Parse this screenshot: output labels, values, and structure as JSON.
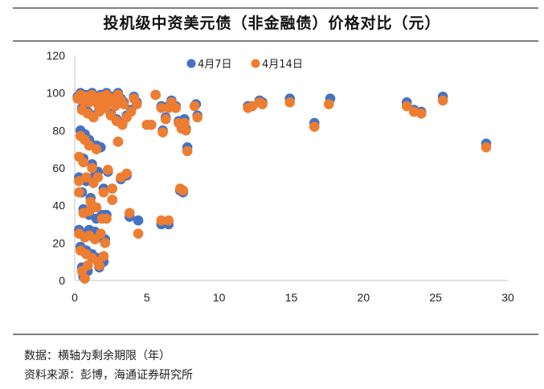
{
  "title": "投机级中资美元债（非金融债）价格对比（元）",
  "notes": {
    "data": "数据：横轴为剩余期限（年）",
    "source": "资料来源：彭博，海通证券研究所"
  },
  "chart_data": {
    "type": "scatter",
    "title": "投机级中资美元债（非金融债）价格对比（元）",
    "xlabel": "",
    "ylabel": "",
    "xlim": [
      0,
      30
    ],
    "ylim": [
      0,
      120
    ],
    "x_ticks": [
      "0",
      "5",
      "10",
      "15",
      "20",
      "25",
      "30"
    ],
    "y_ticks": [
      "0",
      "20",
      "40",
      "60",
      "80",
      "100",
      "120"
    ],
    "grid": false,
    "legend": "top",
    "series": [
      {
        "name": "4月7日",
        "color": "#4472C4",
        "points": [
          [
            0.2,
            98
          ],
          [
            0.4,
            100
          ],
          [
            0.6,
            97
          ],
          [
            0.8,
            99
          ],
          [
            1.0,
            96
          ],
          [
            1.2,
            100
          ],
          [
            1.4,
            98
          ],
          [
            1.6,
            95
          ],
          [
            1.8,
            99
          ],
          [
            2.0,
            97
          ],
          [
            2.2,
            100
          ],
          [
            2.4,
            96
          ],
          [
            2.6,
            98
          ],
          [
            2.8,
            94
          ],
          [
            3.0,
            100
          ],
          [
            3.2,
            97
          ],
          [
            3.4,
            95
          ],
          [
            0.5,
            92
          ],
          [
            0.9,
            90
          ],
          [
            1.3,
            88
          ],
          [
            1.7,
            91
          ],
          [
            2.1,
            93
          ],
          [
            2.5,
            89
          ],
          [
            2.9,
            86
          ],
          [
            3.3,
            84
          ],
          [
            3.6,
            88
          ],
          [
            3.9,
            91
          ],
          [
            4.1,
            98
          ],
          [
            4.3,
            95
          ],
          [
            0.4,
            80
          ],
          [
            0.7,
            78
          ],
          [
            1.0,
            75
          ],
          [
            1.5,
            72
          ],
          [
            1.8,
            71
          ],
          [
            0.6,
            65
          ],
          [
            1.2,
            62
          ],
          [
            1.6,
            58
          ],
          [
            0.3,
            55
          ],
          [
            0.8,
            53
          ],
          [
            1.3,
            55
          ],
          [
            2.0,
            49
          ],
          [
            0.5,
            47
          ],
          [
            1.1,
            44
          ],
          [
            0.6,
            38
          ],
          [
            1.0,
            35
          ],
          [
            1.5,
            33
          ],
          [
            1.9,
            35
          ],
          [
            2.2,
            35
          ],
          [
            0.3,
            27
          ],
          [
            0.7,
            25
          ],
          [
            1.0,
            27
          ],
          [
            1.4,
            26
          ],
          [
            1.8,
            23
          ],
          [
            2.1,
            22
          ],
          [
            0.4,
            18
          ],
          [
            0.8,
            16
          ],
          [
            1.2,
            14
          ],
          [
            1.6,
            12
          ],
          [
            2.0,
            10
          ],
          [
            0.5,
            7
          ],
          [
            0.9,
            5
          ],
          [
            1.7,
            7
          ],
          [
            0.6,
            2
          ],
          [
            5.0,
            83
          ],
          [
            5.3,
            83
          ],
          [
            5.6,
            99
          ],
          [
            6.0,
            93
          ],
          [
            6.3,
            87
          ],
          [
            6.5,
            93
          ],
          [
            6.7,
            96
          ],
          [
            7.0,
            93
          ],
          [
            7.2,
            85
          ],
          [
            7.4,
            82
          ],
          [
            7.6,
            86
          ],
          [
            7.7,
            81
          ],
          [
            7.8,
            71
          ],
          [
            7.3,
            48
          ],
          [
            7.5,
            47
          ],
          [
            6.0,
            30
          ],
          [
            6.5,
            30
          ],
          [
            4.4,
            32
          ],
          [
            3.8,
            34
          ],
          [
            3.0,
            74
          ],
          [
            2.3,
            58
          ],
          [
            3.2,
            54
          ],
          [
            3.6,
            56
          ],
          [
            2.6,
            49
          ],
          [
            2.6,
            43
          ],
          [
            6.1,
            80
          ],
          [
            8.4,
            94
          ],
          [
            8.5,
            88
          ],
          [
            12.0,
            93
          ],
          [
            12.3,
            93
          ],
          [
            12.8,
            96
          ],
          [
            13.0,
            95
          ],
          [
            14.9,
            97
          ],
          [
            16.6,
            84
          ],
          [
            17.7,
            97
          ],
          [
            23.0,
            95
          ],
          [
            23.5,
            91
          ],
          [
            24.0,
            90
          ],
          [
            25.5,
            98
          ],
          [
            28.5,
            73
          ]
        ]
      },
      {
        "name": "4月14日",
        "color": "#ED7D31",
        "points": [
          [
            0.2,
            97
          ],
          [
            0.4,
            99
          ],
          [
            0.6,
            96
          ],
          [
            0.8,
            98
          ],
          [
            1.0,
            95
          ],
          [
            1.2,
            99
          ],
          [
            1.4,
            97
          ],
          [
            1.6,
            94
          ],
          [
            1.8,
            98
          ],
          [
            2.0,
            96
          ],
          [
            2.2,
            99
          ],
          [
            2.4,
            95
          ],
          [
            2.6,
            97
          ],
          [
            2.8,
            93
          ],
          [
            3.0,
            99
          ],
          [
            3.2,
            96
          ],
          [
            3.4,
            94
          ],
          [
            0.5,
            91
          ],
          [
            0.9,
            89
          ],
          [
            1.3,
            87
          ],
          [
            1.7,
            90
          ],
          [
            2.1,
            92
          ],
          [
            2.5,
            88
          ],
          [
            2.9,
            85
          ],
          [
            3.3,
            83
          ],
          [
            3.6,
            87
          ],
          [
            3.9,
            90
          ],
          [
            4.1,
            97
          ],
          [
            4.3,
            94
          ],
          [
            0.4,
            77
          ],
          [
            0.7,
            75
          ],
          [
            1.0,
            72
          ],
          [
            1.5,
            70
          ],
          [
            0.3,
            66
          ],
          [
            0.6,
            63
          ],
          [
            1.2,
            60
          ],
          [
            1.6,
            55
          ],
          [
            0.3,
            53
          ],
          [
            0.8,
            55
          ],
          [
            1.3,
            52
          ],
          [
            2.0,
            47
          ],
          [
            0.3,
            47
          ],
          [
            1.1,
            42
          ],
          [
            0.6,
            36
          ],
          [
            1.0,
            37
          ],
          [
            1.5,
            39
          ],
          [
            1.9,
            33
          ],
          [
            2.2,
            33
          ],
          [
            0.3,
            25
          ],
          [
            0.7,
            23
          ],
          [
            1.0,
            24
          ],
          [
            1.4,
            22
          ],
          [
            1.8,
            25
          ],
          [
            2.1,
            20
          ],
          [
            0.4,
            16
          ],
          [
            0.8,
            14
          ],
          [
            1.2,
            12
          ],
          [
            1.6,
            10
          ],
          [
            2.0,
            13
          ],
          [
            0.5,
            5
          ],
          [
            0.9,
            8
          ],
          [
            1.7,
            8
          ],
          [
            0.7,
            1
          ],
          [
            5.0,
            83
          ],
          [
            5.3,
            83
          ],
          [
            5.6,
            99
          ],
          [
            6.0,
            92
          ],
          [
            6.3,
            86
          ],
          [
            6.5,
            92
          ],
          [
            6.7,
            95
          ],
          [
            7.0,
            92
          ],
          [
            7.2,
            84
          ],
          [
            7.4,
            81
          ],
          [
            7.6,
            84
          ],
          [
            7.7,
            80
          ],
          [
            7.8,
            69
          ],
          [
            7.3,
            49
          ],
          [
            7.5,
            48
          ],
          [
            6.0,
            32
          ],
          [
            6.5,
            32
          ],
          [
            4.4,
            25
          ],
          [
            3.8,
            36
          ],
          [
            3.0,
            74
          ],
          [
            2.3,
            59
          ],
          [
            3.2,
            55
          ],
          [
            3.6,
            57
          ],
          [
            2.6,
            49
          ],
          [
            2.6,
            43
          ],
          [
            6.1,
            79
          ],
          [
            8.3,
            93
          ],
          [
            8.5,
            87
          ],
          [
            12.0,
            92
          ],
          [
            12.3,
            93
          ],
          [
            12.8,
            95
          ],
          [
            13.0,
            94
          ],
          [
            14.9,
            95
          ],
          [
            16.6,
            82
          ],
          [
            17.6,
            94
          ],
          [
            23.0,
            93
          ],
          [
            23.5,
            90
          ],
          [
            24.0,
            89
          ],
          [
            25.5,
            96
          ],
          [
            28.5,
            71
          ]
        ]
      }
    ]
  }
}
